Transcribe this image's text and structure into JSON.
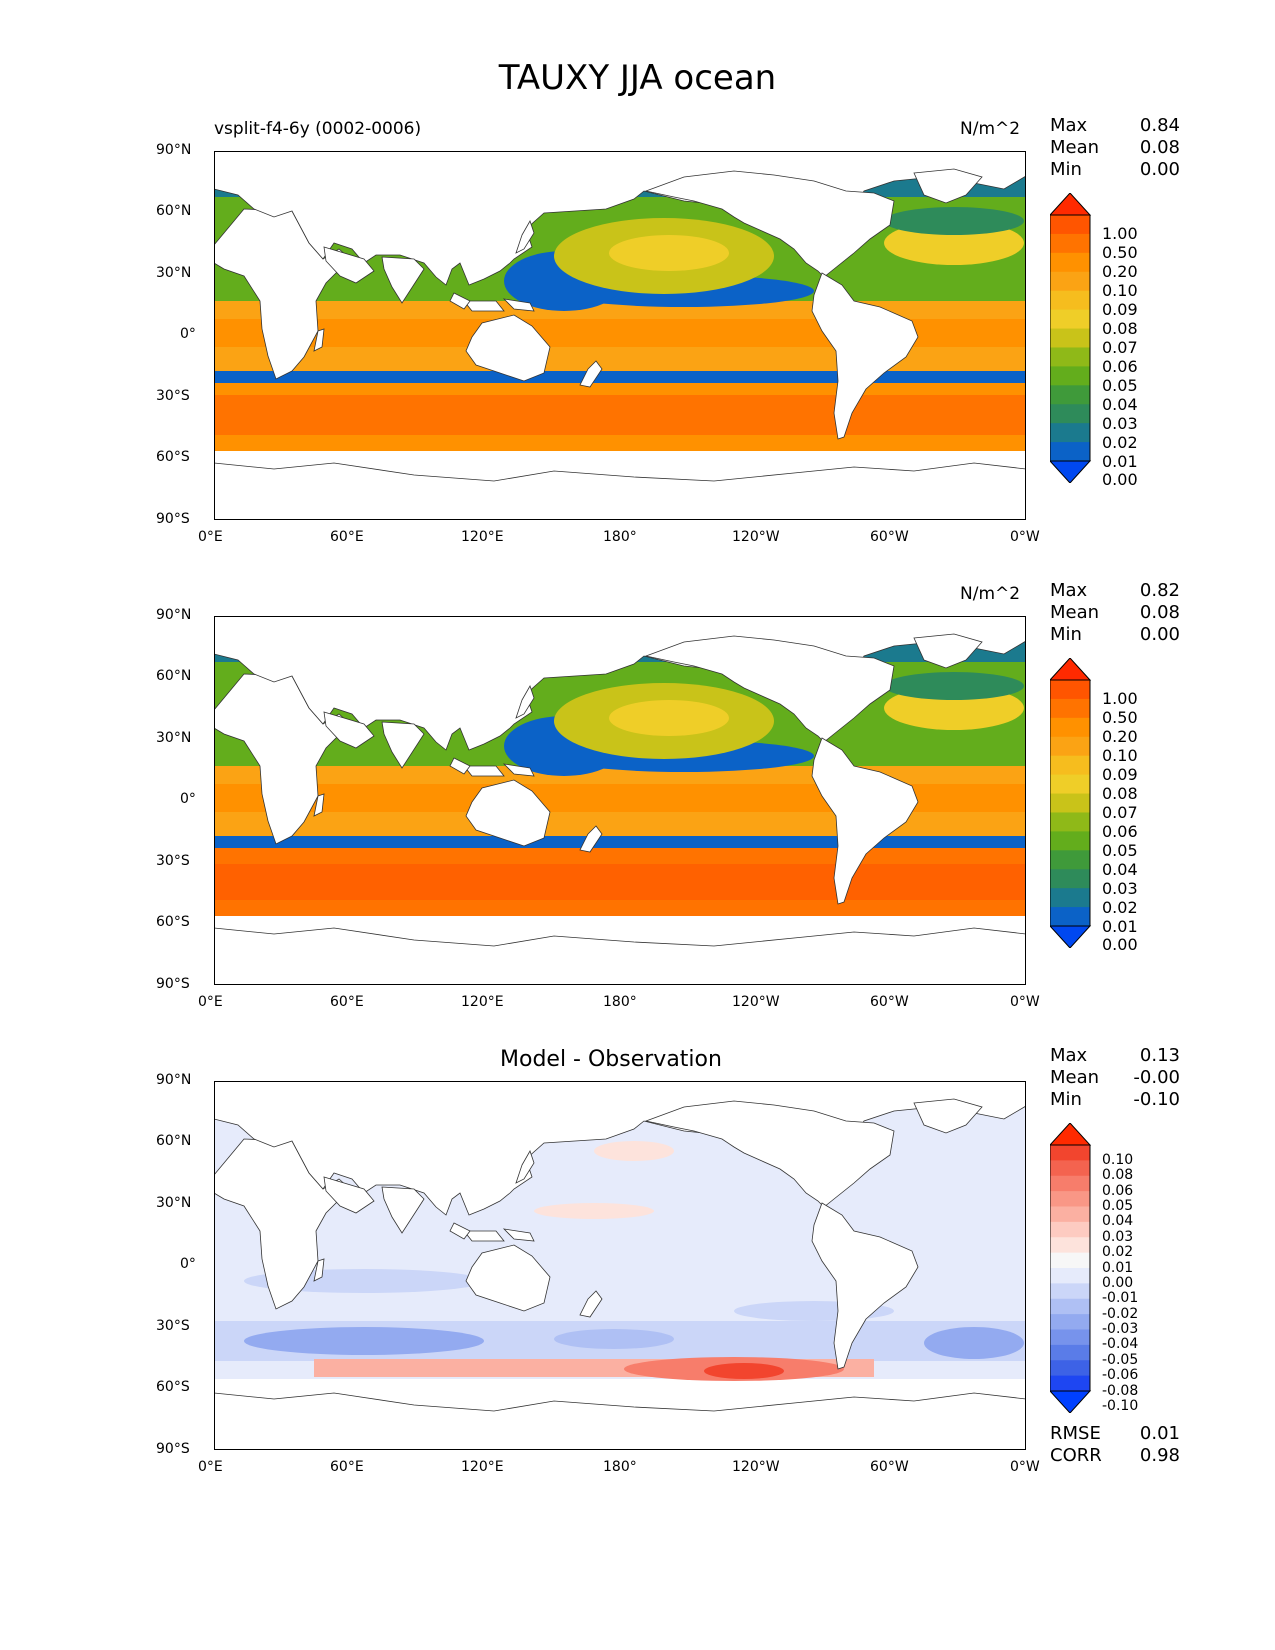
{
  "title": "TAUXY JJA ocean",
  "x_ticks": [
    "0°E",
    "60°E",
    "120°E",
    "180°",
    "120°W",
    "60°W",
    "0°W"
  ],
  "y_ticks": [
    "90°N",
    "60°N",
    "30°N",
    "0°",
    "30°S",
    "60°S",
    "90°S"
  ],
  "stat_labels": {
    "max": "Max",
    "mean": "Mean",
    "min": "Min",
    "rmse": "RMSE",
    "corr": "CORR"
  },
  "levels_abs": [
    "1.00",
    "0.50",
    "0.20",
    "0.10",
    "0.09",
    "0.08",
    "0.07",
    "0.06",
    "0.05",
    "0.04",
    "0.03",
    "0.02",
    "0.01",
    "0.00"
  ],
  "levels_diff": [
    "0.10",
    "0.08",
    "0.06",
    "0.05",
    "0.04",
    "0.03",
    "0.02",
    "0.01",
    "0.00",
    "-0.01",
    "-0.02",
    "-0.03",
    "-0.04",
    "-0.05",
    "-0.06",
    "-0.08",
    "-0.10"
  ],
  "colors_abs": [
    "#ff2a00",
    "#ff5500",
    "#ff7300",
    "#ff9100",
    "#fba314",
    "#f6bd1e",
    "#efce28",
    "#c9c319",
    "#8fb918",
    "#63ad1c",
    "#3f9a3a",
    "#2e8b5a",
    "#1b7a8e",
    "#0b62c7",
    "#0048f0"
  ],
  "colors_diff": [
    "#ff2a00",
    "#f2452e",
    "#f4634f",
    "#f77d6b",
    "#f99786",
    "#fbb0a2",
    "#fdcbc1",
    "#fde3dc",
    "#f7f7f7",
    "#e6ebfb",
    "#cbd6f8",
    "#afc0f4",
    "#93aaf0",
    "#7793ec",
    "#5a7ce8",
    "#3d62e6",
    "#1e46f2",
    "#0040ff"
  ],
  "panels": [
    {
      "name": "vsplit-f4-6y (0002-0006)",
      "units": "N/m^2",
      "subtitle": "",
      "max": "0.84",
      "mean": "0.08",
      "min": "0.00"
    },
    {
      "name": "",
      "units": "N/m^2",
      "subtitle": "",
      "max": "0.82",
      "mean": "0.08",
      "min": "0.00"
    },
    {
      "name": "",
      "units": "",
      "subtitle": "Model - Observation",
      "max": "0.13",
      "mean": "-0.00",
      "min": "-0.10",
      "rmse": "0.01",
      "corr": "0.98"
    }
  ]
}
